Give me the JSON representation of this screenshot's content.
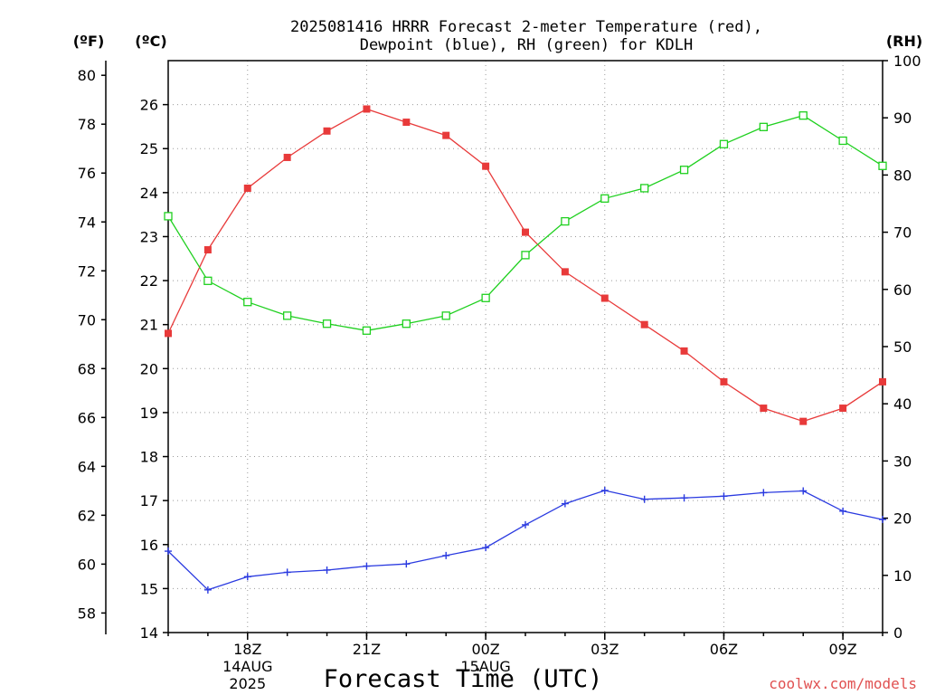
{
  "chart_data": {
    "type": "line",
    "title": "2025081416 HRRR Forecast 2-meter Temperature (red),",
    "subtitle": "Dewpoint (blue), RH (green) for KDLH",
    "xlabel": "Forecast Time (UTC)",
    "credit": "coolwx.com/models",
    "units": {
      "f": "(ºF)",
      "c": "(ºC)",
      "rh": "(RH)"
    },
    "x": [
      "16Z",
      "17Z",
      "18Z",
      "19Z",
      "20Z",
      "21Z",
      "22Z",
      "23Z",
      "00Z",
      "01Z",
      "02Z",
      "03Z",
      "04Z",
      "05Z",
      "06Z",
      "07Z",
      "08Z",
      "09Z",
      "10Z"
    ],
    "x_ticks": [
      {
        "index": 2,
        "label": "18Z",
        "sub": [
          "14AUG",
          "2025"
        ]
      },
      {
        "index": 5,
        "label": "21Z",
        "sub": []
      },
      {
        "index": 8,
        "label": "00Z",
        "sub": [
          "15AUG"
        ]
      },
      {
        "index": 11,
        "label": "03Z",
        "sub": []
      },
      {
        "index": 14,
        "label": "06Z",
        "sub": []
      },
      {
        "index": 17,
        "label": "09Z",
        "sub": []
      }
    ],
    "c_axis": {
      "min": 14,
      "max": 27,
      "ticks": [
        14,
        15,
        16,
        17,
        18,
        19,
        20,
        21,
        22,
        23,
        24,
        25,
        26
      ]
    },
    "f_axis": {
      "min": 57.2,
      "max": 80.6,
      "ticks": [
        58,
        60,
        62,
        64,
        66,
        68,
        70,
        72,
        74,
        76,
        78,
        80
      ]
    },
    "rh_axis": {
      "min": 0,
      "max": 100,
      "ticks": [
        0,
        10,
        20,
        30,
        40,
        50,
        60,
        70,
        80,
        90,
        100
      ]
    },
    "grid": true,
    "series": [
      {
        "color": "#e83a3a",
        "marker": "filled-square",
        "axis": "c",
        "values": [
          20.8,
          22.7,
          24.1,
          24.8,
          25.4,
          25.9,
          25.6,
          25.3,
          24.6,
          23.1,
          22.2,
          21.6,
          21.0,
          20.4,
          19.7,
          19.1,
          18.8,
          19.1,
          19.7
        ]
      },
      {
        "color": "#2a3ae0",
        "marker": "plus",
        "axis": "c",
        "values": [
          15.85,
          14.97,
          15.27,
          15.37,
          15.42,
          15.51,
          15.56,
          15.75,
          15.93,
          16.45,
          16.93,
          17.23,
          17.03,
          17.06,
          17.1,
          17.18,
          17.22,
          16.76,
          16.57
        ]
      },
      {
        "color": "#1fd01f",
        "marker": "open-square",
        "axis": "rh",
        "values": [
          72.8,
          61.5,
          57.8,
          55.4,
          54.0,
          52.8,
          54.0,
          55.4,
          58.5,
          66.0,
          71.9,
          75.9,
          77.7,
          80.9,
          85.4,
          88.4,
          90.4,
          86.0,
          81.6
        ]
      }
    ]
  }
}
